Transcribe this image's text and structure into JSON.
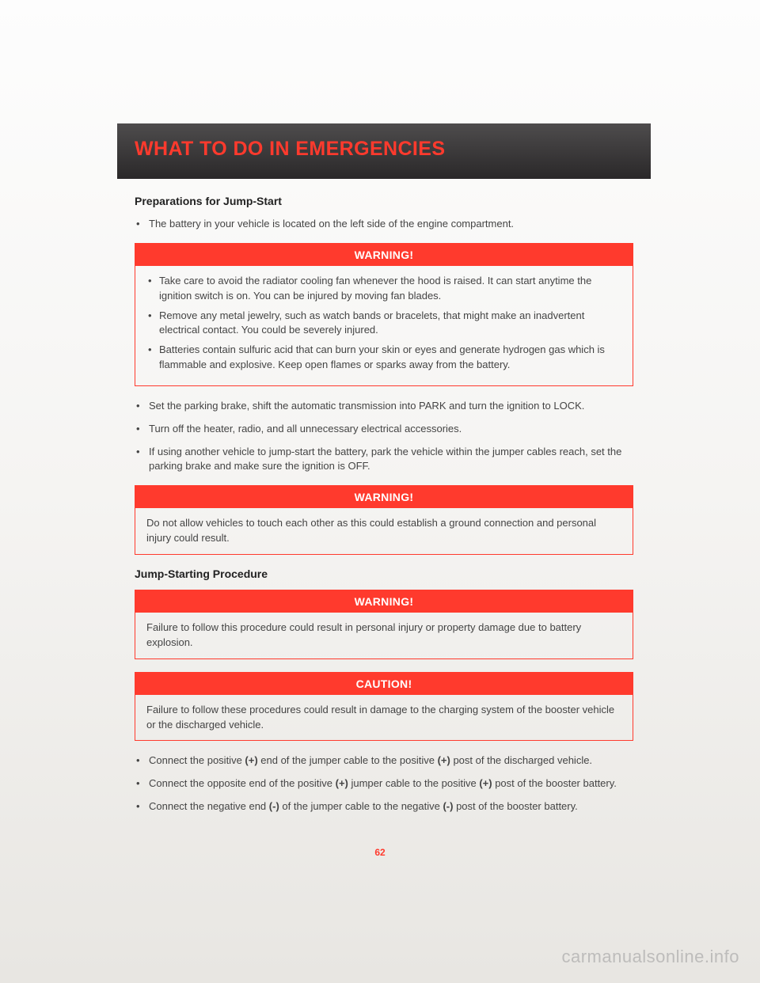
{
  "header": {
    "title": "WHAT TO DO IN EMERGENCIES"
  },
  "sections": {
    "prep": {
      "heading": "Preparations for Jump-Start",
      "item1": "The battery in your vehicle is located on the left side of the engine compartment."
    },
    "warning1": {
      "label": "WARNING!",
      "b1": "Take care to avoid the radiator cooling fan whenever the hood is raised. It can start anytime the ignition switch is on. You can be injured by moving fan blades.",
      "b2": "Remove any metal jewelry, such as watch bands or bracelets, that might make an inadvertent electrical contact. You could be severely injured.",
      "b3": "Batteries contain sulfuric acid that can burn your skin or eyes and generate hydrogen gas which is flammable and explosive. Keep open flames or sparks away from the battery."
    },
    "after_warning1": {
      "b1": "Set the parking brake, shift the automatic transmission into PARK and turn the ignition to LOCK.",
      "b2": "Turn off the heater, radio, and all unnecessary electrical accessories.",
      "b3": "If using another vehicle to jump-start the battery, park the vehicle within the jumper cables reach, set the parking brake and make sure the ignition is OFF."
    },
    "warning2": {
      "label": "WARNING!",
      "text": "Do not allow vehicles to touch each other as this could establish a ground connection and personal injury could result."
    },
    "jump": {
      "heading": "Jump-Starting Procedure"
    },
    "warning3": {
      "label": "WARNING!",
      "text": "Failure to follow this procedure could result in personal injury or property damage due to battery explosion."
    },
    "caution1": {
      "label": "CAUTION!",
      "text": "Failure to follow these procedures could result in damage to the charging system of the booster vehicle or the discharged vehicle."
    },
    "procedure": {
      "b1_a": "Connect the positive ",
      "b1_b": "(+)",
      "b1_c": " end of the jumper cable to the positive ",
      "b1_d": "(+)",
      "b1_e": " post of the discharged vehicle.",
      "b2_a": "Connect the opposite end of the positive ",
      "b2_b": "(+)",
      "b2_c": " jumper cable to the positive ",
      "b2_d": "(+)",
      "b2_e": " post of the booster battery.",
      "b3_a": "Connect the negative end ",
      "b3_b": "(-)",
      "b3_c": " of the jumper cable to the negative ",
      "b3_d": "(-)",
      "b3_e": " post of the booster battery."
    }
  },
  "page_number": "62",
  "watermark": "carmanualsonline.info",
  "colors": {
    "accent": "#ff3a2d",
    "header_bg_top": "#4e4c4d",
    "header_bg_bottom": "#2a2829",
    "text": "#444444",
    "page_bg_top": "#fdfdfd",
    "page_bg_bottom": "#e8e6e2"
  }
}
